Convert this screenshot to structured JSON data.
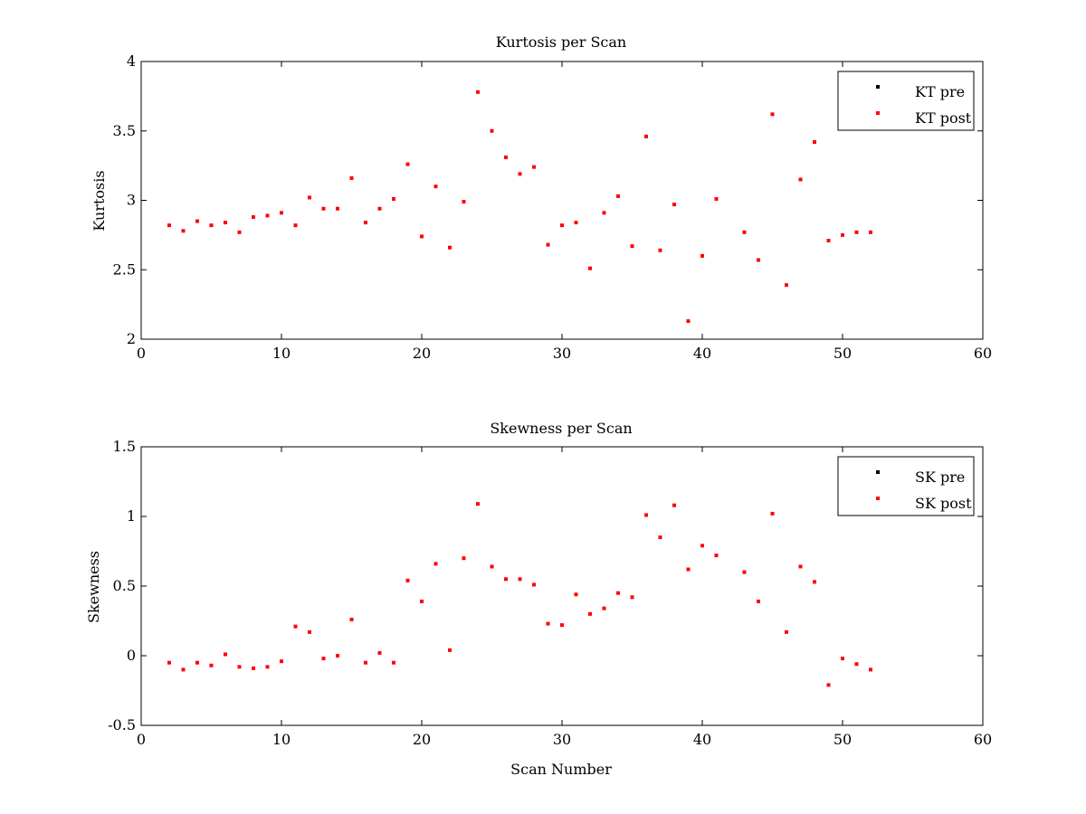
{
  "figure": {
    "background": "#ffffff"
  },
  "chart_data": [
    {
      "type": "scatter",
      "title": "Kurtosis per Scan",
      "xlabel": "",
      "ylabel": "Kurtosis",
      "xlim": [
        0,
        60
      ],
      "ylim": [
        2,
        4
      ],
      "xticks": [
        "0",
        "10",
        "20",
        "30",
        "40",
        "50",
        "60"
      ],
      "xtick_values": [
        0,
        10,
        20,
        30,
        40,
        50,
        60
      ],
      "yticks": [
        "2",
        "2.5",
        "3",
        "3.5",
        "4"
      ],
      "ytick_values": [
        2,
        2.5,
        3,
        3.5,
        4
      ],
      "grid": false,
      "legend_position": "top-right",
      "series": [
        {
          "name": "KT pre",
          "color": "#000000",
          "x": [],
          "y": []
        },
        {
          "name": "KT post",
          "color": "#ff0000",
          "x": [
            2,
            3,
            4,
            5,
            6,
            7,
            8,
            9,
            10,
            11,
            12,
            13,
            14,
            15,
            16,
            17,
            18,
            19,
            20,
            21,
            22,
            23,
            24,
            25,
            26,
            27,
            28,
            29,
            30,
            31,
            32,
            33,
            34,
            35,
            36,
            37,
            38,
            39,
            40,
            41,
            43,
            44,
            45,
            46,
            47,
            48,
            49,
            50,
            51,
            52
          ],
          "y": [
            2.82,
            2.78,
            2.85,
            2.82,
            2.84,
            2.77,
            2.88,
            2.89,
            2.91,
            2.82,
            3.02,
            2.94,
            2.94,
            3.16,
            2.84,
            2.94,
            3.01,
            3.26,
            2.74,
            3.1,
            2.66,
            2.99,
            3.78,
            3.5,
            3.31,
            3.19,
            3.24,
            2.68,
            2.82,
            2.84,
            2.51,
            2.91,
            3.03,
            2.67,
            3.46,
            2.64,
            2.97,
            2.13,
            2.6,
            3.01,
            2.77,
            2.57,
            3.62,
            2.39,
            3.15,
            3.42,
            2.71,
            2.75,
            2.77,
            2.77
          ]
        }
      ]
    },
    {
      "type": "scatter",
      "title": "Skewness per Scan",
      "xlabel": "Scan Number",
      "ylabel": "Skewness",
      "xlim": [
        0,
        60
      ],
      "ylim": [
        -0.5,
        1.5
      ],
      "xticks": [
        "0",
        "10",
        "20",
        "30",
        "40",
        "50",
        "60"
      ],
      "xtick_values": [
        0,
        10,
        20,
        30,
        40,
        50,
        60
      ],
      "yticks": [
        "-0.5",
        "0",
        "0.5",
        "1",
        "1.5"
      ],
      "ytick_values": [
        -0.5,
        0,
        0.5,
        1,
        1.5
      ],
      "grid": false,
      "legend_position": "top-right",
      "series": [
        {
          "name": "SK pre",
          "color": "#000000",
          "x": [],
          "y": []
        },
        {
          "name": "SK post",
          "color": "#ff0000",
          "x": [
            2,
            3,
            4,
            5,
            6,
            7,
            8,
            9,
            10,
            11,
            12,
            13,
            14,
            15,
            16,
            17,
            18,
            19,
            20,
            21,
            22,
            23,
            24,
            25,
            26,
            27,
            28,
            29,
            30,
            31,
            32,
            33,
            34,
            35,
            36,
            37,
            38,
            39,
            40,
            41,
            43,
            44,
            45,
            46,
            47,
            48,
            49,
            50,
            51,
            52
          ],
          "y": [
            -0.05,
            -0.1,
            -0.05,
            -0.07,
            0.01,
            -0.08,
            -0.09,
            -0.08,
            -0.04,
            0.21,
            0.17,
            -0.02,
            0.0,
            0.26,
            -0.05,
            0.02,
            -0.05,
            0.54,
            0.39,
            0.66,
            0.04,
            0.7,
            1.09,
            0.64,
            0.55,
            0.55,
            0.51,
            0.23,
            0.22,
            0.44,
            0.3,
            0.34,
            0.45,
            0.42,
            1.01,
            0.85,
            1.08,
            0.62,
            0.79,
            0.72,
            0.6,
            0.39,
            1.02,
            0.17,
            0.64,
            0.53,
            -0.21,
            -0.02,
            -0.06,
            -0.1
          ]
        }
      ]
    }
  ]
}
